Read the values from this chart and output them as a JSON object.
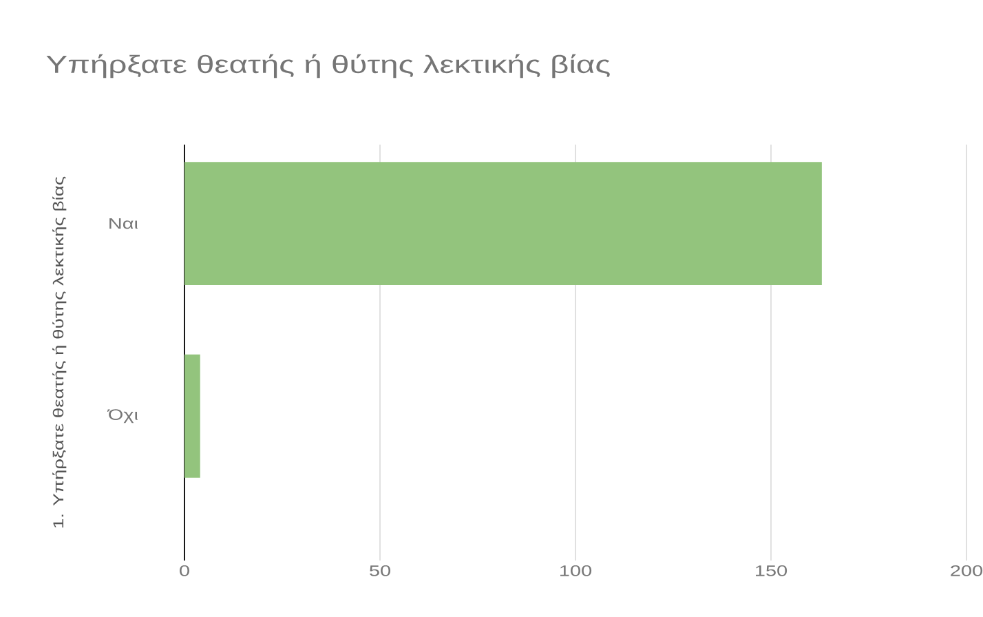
{
  "chart_data": {
    "type": "bar",
    "orientation": "horizontal",
    "title": "Υπήρξατε θεατής ή θύτης λεκτικής βίας",
    "ylabel": "1. Υπήρξατε θεατής ή θύτης λεκτικής βίας",
    "categories": [
      "Ναι",
      "Όχι"
    ],
    "values": [
      163,
      4
    ],
    "color": "#93c47d",
    "xlim": [
      0,
      200
    ],
    "xticks": [
      0,
      50,
      100,
      150,
      200
    ],
    "grid": "x"
  }
}
